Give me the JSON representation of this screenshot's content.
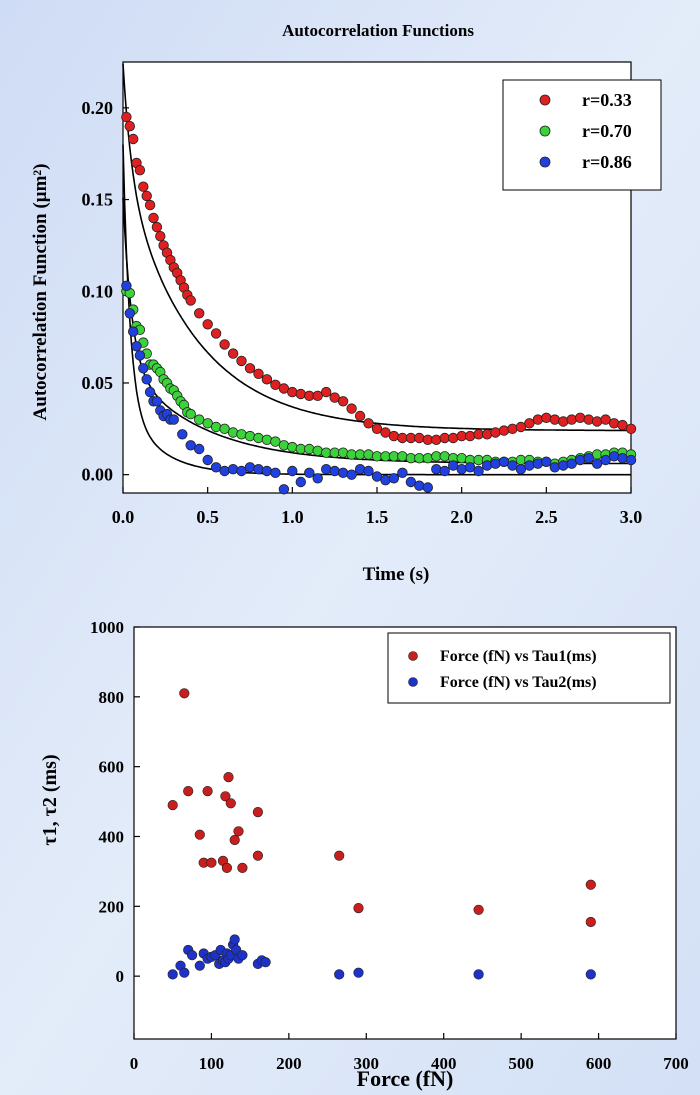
{
  "chart_data": [
    {
      "type": "scatter",
      "title": "Autocorrelation Functions",
      "xlabel": "Time (s)",
      "ylabel": "Autocorrelation Function (µm²)",
      "xlim": [
        0,
        3.0
      ],
      "ylim": [
        -0.01,
        0.225
      ],
      "xticks": [
        "0.0",
        "0.5",
        "1.0",
        "1.5",
        "2.0",
        "2.5",
        "3.0"
      ],
      "yticks": [
        "0.00",
        "0.05",
        "0.10",
        "0.15",
        "0.20"
      ],
      "legend_position": "top-right",
      "colors": {
        "r033": "#e02020",
        "r070": "#3ad43a",
        "r086": "#2040e0"
      },
      "series": [
        {
          "name": "r=0.33",
          "x": [
            0.02,
            0.04,
            0.06,
            0.08,
            0.1,
            0.12,
            0.14,
            0.16,
            0.18,
            0.2,
            0.22,
            0.24,
            0.26,
            0.28,
            0.3,
            0.32,
            0.34,
            0.36,
            0.38,
            0.4,
            0.45,
            0.5,
            0.55,
            0.6,
            0.65,
            0.7,
            0.75,
            0.8,
            0.85,
            0.9,
            0.95,
            1.0,
            1.05,
            1.1,
            1.15,
            1.2,
            1.25,
            1.3,
            1.35,
            1.4,
            1.45,
            1.5,
            1.55,
            1.6,
            1.65,
            1.7,
            1.75,
            1.8,
            1.85,
            1.9,
            1.95,
            2.0,
            2.05,
            2.1,
            2.15,
            2.2,
            2.25,
            2.3,
            2.35,
            2.4,
            2.45,
            2.5,
            2.55,
            2.6,
            2.65,
            2.7,
            2.75,
            2.8,
            2.85,
            2.9,
            2.95,
            3.0
          ],
          "y": [
            0.195,
            0.19,
            0.183,
            0.17,
            0.166,
            0.157,
            0.152,
            0.147,
            0.14,
            0.135,
            0.13,
            0.125,
            0.121,
            0.117,
            0.113,
            0.11,
            0.106,
            0.102,
            0.098,
            0.095,
            0.088,
            0.082,
            0.077,
            0.071,
            0.066,
            0.062,
            0.058,
            0.055,
            0.052,
            0.049,
            0.047,
            0.045,
            0.044,
            0.043,
            0.043,
            0.045,
            0.042,
            0.04,
            0.036,
            0.032,
            0.028,
            0.025,
            0.023,
            0.021,
            0.02,
            0.02,
            0.02,
            0.019,
            0.019,
            0.02,
            0.02,
            0.021,
            0.021,
            0.022,
            0.022,
            0.023,
            0.024,
            0.025,
            0.026,
            0.028,
            0.03,
            0.031,
            0.03,
            0.029,
            0.03,
            0.031,
            0.03,
            0.029,
            0.03,
            0.028,
            0.027,
            0.025
          ]
        },
        {
          "name": "r=0.70",
          "x": [
            0.02,
            0.04,
            0.06,
            0.08,
            0.1,
            0.12,
            0.14,
            0.16,
            0.18,
            0.2,
            0.22,
            0.24,
            0.26,
            0.28,
            0.3,
            0.32,
            0.34,
            0.36,
            0.38,
            0.4,
            0.45,
            0.5,
            0.55,
            0.6,
            0.65,
            0.7,
            0.75,
            0.8,
            0.85,
            0.9,
            0.95,
            1.0,
            1.05,
            1.1,
            1.15,
            1.2,
            1.25,
            1.3,
            1.35,
            1.4,
            1.45,
            1.5,
            1.55,
            1.6,
            1.65,
            1.7,
            1.75,
            1.8,
            1.85,
            1.9,
            1.95,
            2.0,
            2.05,
            2.1,
            2.15,
            2.2,
            2.25,
            2.3,
            2.35,
            2.4,
            2.45,
            2.5,
            2.55,
            2.6,
            2.65,
            2.7,
            2.75,
            2.8,
            2.85,
            2.9,
            2.95,
            3.0
          ],
          "y": [
            0.1,
            0.099,
            0.09,
            0.081,
            0.079,
            0.072,
            0.066,
            0.06,
            0.06,
            0.058,
            0.056,
            0.052,
            0.05,
            0.047,
            0.046,
            0.043,
            0.04,
            0.038,
            0.034,
            0.033,
            0.03,
            0.028,
            0.026,
            0.025,
            0.023,
            0.022,
            0.021,
            0.02,
            0.019,
            0.018,
            0.016,
            0.015,
            0.014,
            0.014,
            0.013,
            0.012,
            0.012,
            0.012,
            0.011,
            0.011,
            0.011,
            0.01,
            0.01,
            0.01,
            0.01,
            0.009,
            0.009,
            0.009,
            0.01,
            0.01,
            0.009,
            0.009,
            0.008,
            0.008,
            0.008,
            0.007,
            0.007,
            0.007,
            0.008,
            0.008,
            0.007,
            0.007,
            0.006,
            0.007,
            0.008,
            0.009,
            0.01,
            0.011,
            0.011,
            0.012,
            0.012,
            0.011
          ]
        },
        {
          "name": "r=0.86",
          "x": [
            0.02,
            0.04,
            0.06,
            0.08,
            0.1,
            0.12,
            0.14,
            0.16,
            0.18,
            0.2,
            0.22,
            0.24,
            0.26,
            0.28,
            0.3,
            0.35,
            0.4,
            0.45,
            0.5,
            0.55,
            0.6,
            0.65,
            0.7,
            0.75,
            0.8,
            0.85,
            0.9,
            0.95,
            1.0,
            1.05,
            1.1,
            1.15,
            1.2,
            1.25,
            1.3,
            1.35,
            1.4,
            1.45,
            1.5,
            1.55,
            1.6,
            1.65,
            1.7,
            1.75,
            1.8,
            1.85,
            1.9,
            1.95,
            2.0,
            2.05,
            2.1,
            2.15,
            2.2,
            2.25,
            2.3,
            2.35,
            2.4,
            2.45,
            2.5,
            2.55,
            2.6,
            2.65,
            2.7,
            2.75,
            2.8,
            2.85,
            2.9,
            2.95,
            3.0
          ],
          "y": [
            0.103,
            0.088,
            0.078,
            0.07,
            0.065,
            0.058,
            0.052,
            0.045,
            0.04,
            0.04,
            0.035,
            0.032,
            0.033,
            0.03,
            0.03,
            0.022,
            0.016,
            0.014,
            0.008,
            0.004,
            0.002,
            0.003,
            0.002,
            0.004,
            0.003,
            0.002,
            0.001,
            -0.008,
            0.002,
            -0.004,
            0.001,
            -0.002,
            0.003,
            0.002,
            0.001,
            0.0,
            0.003,
            0.002,
            -0.001,
            -0.003,
            -0.002,
            0.001,
            -0.004,
            -0.006,
            -0.007,
            0.003,
            0.002,
            0.005,
            0.003,
            0.004,
            0.002,
            0.005,
            0.006,
            0.007,
            0.005,
            0.003,
            0.005,
            0.006,
            0.007,
            0.004,
            0.005,
            0.006,
            0.008,
            0.009,
            0.006,
            0.008,
            0.01,
            0.009,
            0.008
          ]
        }
      ],
      "fits": [
        {
          "series": "r=0.33",
          "a": 0.14,
          "tau": 0.42,
          "b": 0.06,
          "tau2": 0.05,
          "c": 0.024
        },
        {
          "series": "r=0.70",
          "a": 0.055,
          "tau": 0.45,
          "b": 0.09,
          "tau2": 0.05,
          "c": 0.006
        },
        {
          "series": "r=0.86",
          "a": 0.04,
          "tau": 0.2,
          "b": 0.14,
          "tau2": 0.04,
          "c": 0.0
        }
      ]
    },
    {
      "type": "scatter",
      "title": "",
      "xlabel": "Force (fN)",
      "ylabel": "τ1, τ2 (ms)",
      "xlim": [
        0,
        700
      ],
      "ylim": [
        -180,
        1000
      ],
      "xticks": [
        "0",
        "100",
        "200",
        "300",
        "400",
        "500",
        "600",
        "700"
      ],
      "yticks": [
        "0",
        "200",
        "400",
        "600",
        "800",
        "1000"
      ],
      "legend_position": "top-right",
      "colors": {
        "tau1": "#c81e1e",
        "tau2": "#1e32c8"
      },
      "series": [
        {
          "name": "Force (fN) vs Tau1(ms)",
          "x": [
            50,
            65,
            70,
            85,
            90,
            95,
            100,
            115,
            118,
            120,
            122,
            125,
            130,
            135,
            140,
            160,
            160,
            265,
            290,
            445,
            590,
            590
          ],
          "y": [
            490,
            810,
            530,
            405,
            325,
            530,
            325,
            330,
            515,
            310,
            570,
            495,
            390,
            415,
            310,
            345,
            470,
            345,
            195,
            190,
            262,
            155
          ]
        },
        {
          "name": "Force (fN) vs Tau2(ms)",
          "x": [
            50,
            60,
            65,
            70,
            75,
            85,
            90,
            95,
            100,
            105,
            110,
            112,
            115,
            118,
            120,
            122,
            125,
            128,
            130,
            132,
            135,
            140,
            160,
            165,
            170,
            265,
            290,
            445,
            590
          ],
          "y": [
            5,
            30,
            10,
            75,
            60,
            30,
            65,
            50,
            55,
            60,
            35,
            75,
            45,
            40,
            65,
            50,
            60,
            90,
            105,
            75,
            50,
            60,
            35,
            45,
            40,
            5,
            10,
            5,
            5
          ]
        }
      ]
    }
  ]
}
